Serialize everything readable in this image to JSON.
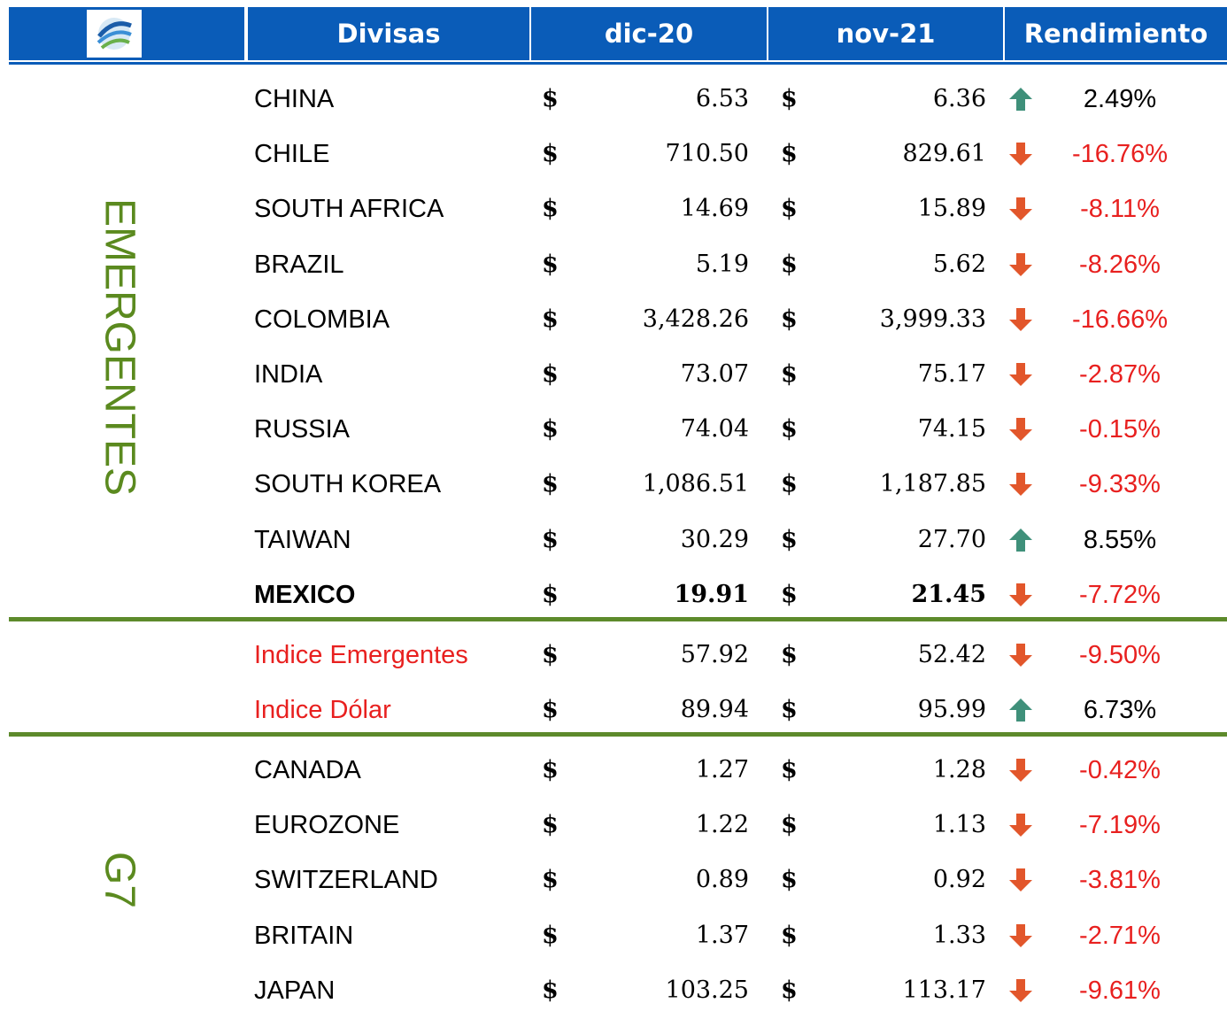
{
  "header": {
    "columns": [
      "Divisas",
      "dic-20",
      "nov-21",
      "Rendimiento"
    ]
  },
  "currency_symbol": "$",
  "sections": [
    {
      "label": "EMERGENTES",
      "rows": [
        {
          "name": "CHINA",
          "dic_20": "6.53",
          "nov_21": "6.36",
          "rendimiento": "2.49%"
        },
        {
          "name": "CHILE",
          "dic_20": "710.50",
          "nov_21": "829.61",
          "rendimiento": "-16.76%"
        },
        {
          "name": "SOUTH AFRICA",
          "dic_20": "14.69",
          "nov_21": "15.89",
          "rendimiento": "-8.11%"
        },
        {
          "name": "BRAZIL",
          "dic_20": "5.19",
          "nov_21": "5.62",
          "rendimiento": "-8.26%"
        },
        {
          "name": "COLOMBIA",
          "dic_20": "3,428.26",
          "nov_21": "3,999.33",
          "rendimiento": "-16.66%"
        },
        {
          "name": "INDIA",
          "dic_20": "73.07",
          "nov_21": "75.17",
          "rendimiento": "-2.87%"
        },
        {
          "name": "RUSSIA",
          "dic_20": "74.04",
          "nov_21": "74.15",
          "rendimiento": "-0.15%"
        },
        {
          "name": "SOUTH KOREA",
          "dic_20": "1,086.51",
          "nov_21": "1,187.85",
          "rendimiento": "-9.33%"
        },
        {
          "name": "TAIWAN",
          "dic_20": "30.29",
          "nov_21": "27.70",
          "rendimiento": "8.55%"
        },
        {
          "name": "MEXICO",
          "dic_20": "19.91",
          "nov_21": "21.45",
          "rendimiento": "-7.72%",
          "bold": true
        }
      ]
    },
    {
      "rows": [
        {
          "name": "Indice Emergentes",
          "dic_20": "57.92",
          "nov_21": "52.42",
          "rendimiento": "-9.50%"
        },
        {
          "name": "Indice Dólar",
          "dic_20": "89.94",
          "nov_21": "95.99",
          "rendimiento": "6.73%"
        }
      ]
    },
    {
      "label": "G7",
      "rows": [
        {
          "name": "CANADA",
          "dic_20": "1.27",
          "nov_21": "1.28",
          "rendimiento": "-0.42%"
        },
        {
          "name": "EUROZONE",
          "dic_20": "1.22",
          "nov_21": "1.13",
          "rendimiento": "-7.19%"
        },
        {
          "name": "SWITZERLAND",
          "dic_20": "0.89",
          "nov_21": "0.92",
          "rendimiento": "-3.81%"
        },
        {
          "name": "BRITAIN",
          "dic_20": "1.37",
          "nov_21": "1.33",
          "rendimiento": "-2.71%"
        },
        {
          "name": "JAPAN",
          "dic_20": "103.25",
          "nov_21": "113.17",
          "rendimiento": "-9.61%"
        }
      ]
    }
  ]
}
